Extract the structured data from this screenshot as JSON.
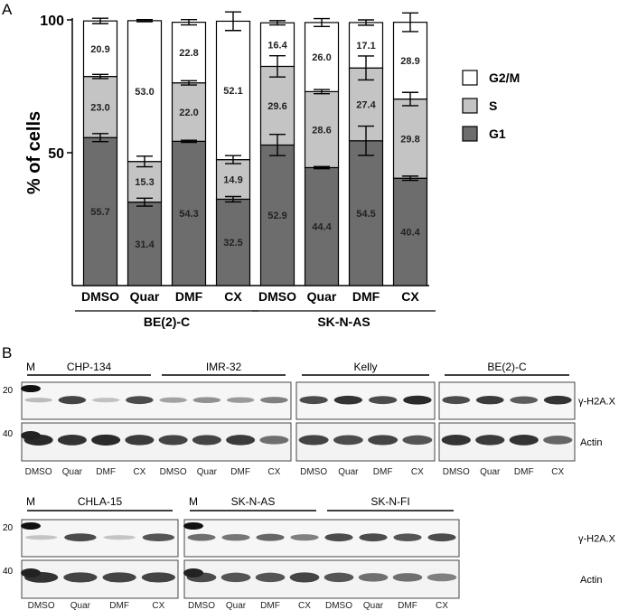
{
  "panel_a": {
    "label": "A",
    "chart_data": {
      "type": "bar",
      "stacked": true,
      "ylabel": "% of cells",
      "ylim": [
        0,
        100
      ],
      "yticks": [
        50,
        100
      ],
      "categories": [
        "DMSO",
        "Quar",
        "DMF",
        "CX",
        "DMSO",
        "Quar",
        "DMF",
        "CX"
      ],
      "groups": [
        {
          "name": "BE(2)-C",
          "start": 0,
          "end": 3
        },
        {
          "name": "SK-N-AS",
          "start": 4,
          "end": 7
        }
      ],
      "series": [
        {
          "name": "G1",
          "color": "#6d6d6d",
          "text_color": "#222222",
          "values": [
            55.7,
            31.4,
            54.3,
            32.5,
            52.9,
            44.4,
            54.5,
            40.4
          ],
          "errors": [
            1.5,
            1.5,
            0.4,
            1.0,
            4.0,
            0.4,
            5.5,
            0.8
          ]
        },
        {
          "name": "S",
          "color": "#c4c4c4",
          "text_color": "#222222",
          "values": [
            23.0,
            15.3,
            22.0,
            14.9,
            29.6,
            28.6,
            27.4,
            29.8
          ],
          "errors": [
            0.8,
            2.0,
            0.8,
            1.5,
            4.0,
            0.8,
            4.5,
            2.5
          ]
        },
        {
          "name": "G2/M",
          "color": "#ffffff",
          "text_color": "#222222",
          "values": [
            20.9,
            53.0,
            22.8,
            52.1,
            16.4,
            26.0,
            17.1,
            28.9
          ],
          "errors": [
            1.0,
            0.4,
            1.0,
            3.5,
            0.8,
            1.5,
            1.0,
            3.5
          ]
        }
      ],
      "legend": [
        "G2/M",
        "S",
        "G1"
      ],
      "legend_position": "right"
    }
  },
  "panel_b": {
    "label": "B",
    "marker_label": "M",
    "marker_sizes": [
      "20",
      "40"
    ],
    "protein_labels": [
      "γ-H2A.X",
      "Actin"
    ],
    "lanes": [
      "DMSO",
      "Quar",
      "DMF",
      "CX"
    ],
    "top_row": {
      "boxes": [
        {
          "cell_lines": [
            "CHP-134",
            "IMR-32"
          ],
          "lane_count": 8,
          "h2ax": [
            0.15,
            0.85,
            0.12,
            0.8,
            0.3,
            0.4,
            0.35,
            0.5
          ],
          "actin": [
            1.0,
            0.95,
            1.0,
            0.9,
            0.85,
            0.85,
            0.9,
            0.6
          ]
        },
        {
          "cell_lines": [
            "Kelly"
          ],
          "lane_count": 4,
          "h2ax": [
            0.8,
            0.95,
            0.8,
            1.0
          ],
          "actin": [
            0.85,
            0.8,
            0.85,
            0.75
          ]
        },
        {
          "cell_lines": [
            "BE(2)-C"
          ],
          "lane_count": 4,
          "h2ax": [
            0.8,
            0.9,
            0.7,
            0.95
          ],
          "actin": [
            0.95,
            0.9,
            0.95,
            0.65
          ]
        }
      ]
    },
    "bottom_row": {
      "boxes": [
        {
          "cell_lines": [
            "CHLA-15"
          ],
          "lane_count": 4,
          "h2ax": [
            0.1,
            0.8,
            0.1,
            0.75
          ],
          "actin": [
            0.95,
            0.85,
            0.85,
            0.85
          ]
        },
        {
          "cell_lines": [
            "SK-N-AS",
            "SK-N-FI"
          ],
          "lane_count": 8,
          "h2ax": [
            0.6,
            0.55,
            0.65,
            0.5,
            0.8,
            0.8,
            0.75,
            0.8
          ],
          "actin": [
            0.8,
            0.75,
            0.75,
            0.85,
            0.75,
            0.6,
            0.6,
            0.5
          ]
        }
      ]
    }
  }
}
